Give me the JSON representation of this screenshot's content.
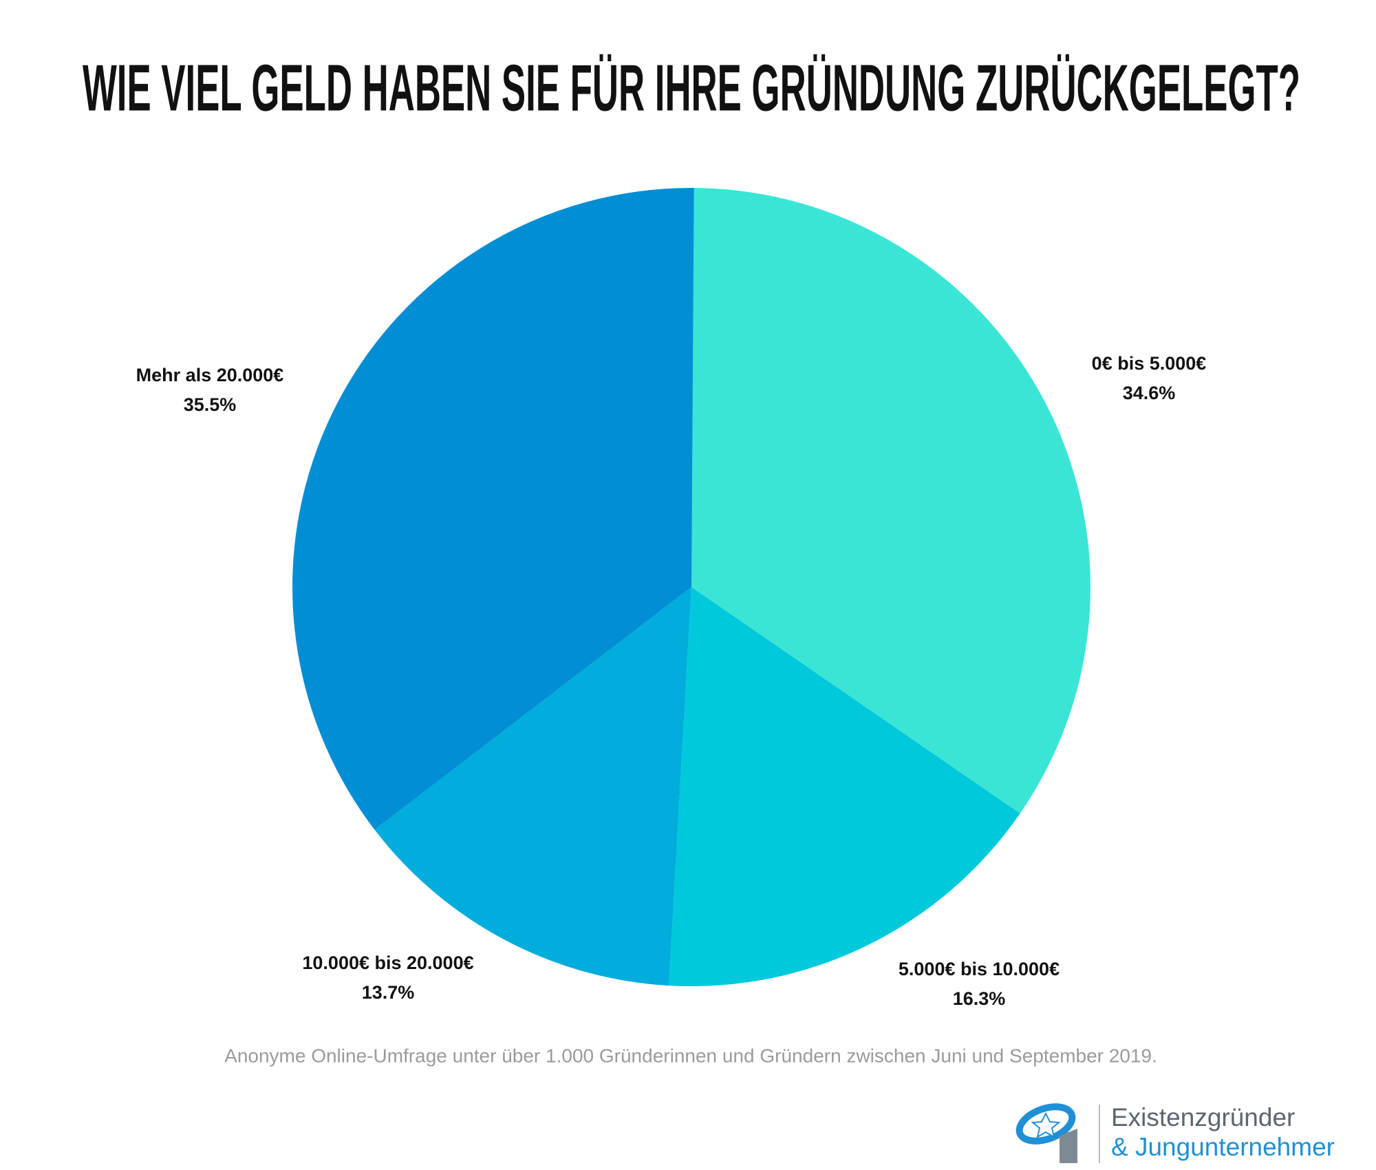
{
  "chart_data": {
    "type": "pie",
    "title": "WIE VIEL GELD HABEN SIE FÜR IHRE GRÜNDUNG ZURÜCKGELEGT?",
    "categories": [
      "0€ bis 5.000€",
      "5.000€ bis 10.000€",
      "10.000€ bis 20.000€",
      "Mehr als 20.000€"
    ],
    "values": [
      34.6,
      16.3,
      13.7,
      35.5
    ],
    "value_labels": [
      "34.6%",
      "16.3%",
      "13.7%",
      "35.5%"
    ],
    "colors": [
      "#3ae5d5",
      "#00c9dc",
      "#00addc",
      "#028ed5"
    ],
    "note": "Anonyme Online-Umfrage unter über 1.000 Gründerinnen und Gründern zwischen Juni und September 2019."
  },
  "logo": {
    "line1": "Existenzgründer",
    "line2": "& Jungunternehmer"
  }
}
